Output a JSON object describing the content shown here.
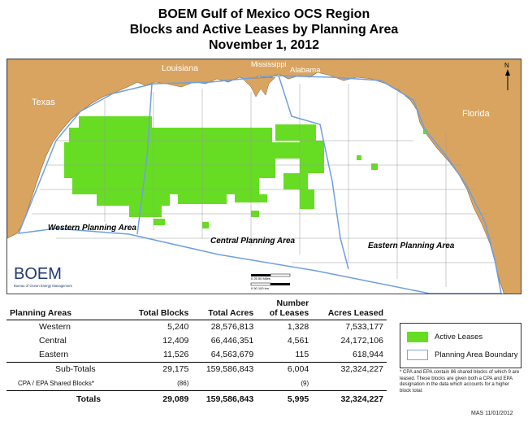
{
  "title": {
    "line1": "BOEM Gulf of Mexico OCS Region",
    "line2": "Blocks and Active Leases by Planning Area",
    "line3": "November 1, 2012"
  },
  "map": {
    "states": {
      "texas": "Texas",
      "louisiana": "Louisiana",
      "mississippi": "Mississippi",
      "alabama": "Alabama",
      "florida": "Florida"
    },
    "areas": {
      "western": "Western Planning Area",
      "central": "Central Planning Area",
      "eastern": "Eastern Planning Area"
    },
    "north_label": "N",
    "logo_text": "BOEM",
    "logo_subtext": "Bureau of Ocean Energy Management",
    "scale_label_miles": "0   25   50 Miles",
    "scale_label_km": "0   50   100 km",
    "colors": {
      "land": "#d9a460",
      "water": "#ffffff",
      "leases": "#66dd22",
      "boundary": "#6f9fe0",
      "grid": "#9a9a9a"
    }
  },
  "table": {
    "headers": {
      "area": "Planning Areas",
      "blocks": "Total Blocks",
      "acres": "Total Acres",
      "leases_line1": "Number",
      "leases_line2": "of Leases",
      "leased": "Acres Leased"
    },
    "rows": [
      {
        "name": "Western",
        "blocks": "5,240",
        "acres": "28,576,813",
        "leases": "1,328",
        "leased": "7,533,177"
      },
      {
        "name": "Central",
        "blocks": "12,409",
        "acres": "66,446,351",
        "leases": "4,561",
        "leased": "24,172,106"
      },
      {
        "name": "Eastern",
        "blocks": "11,526",
        "acres": "64,563,679",
        "leases": "115",
        "leased": "618,944"
      }
    ],
    "subtotal": {
      "name": "Sub-Totals",
      "blocks": "29,175",
      "acres": "159,586,843",
      "leases": "6,004",
      "leased": "32,324,227"
    },
    "shared": {
      "name": "CPA / EPA Shared Blocks*",
      "blocks": "(86)",
      "acres": "",
      "leases": "(9)",
      "leased": ""
    },
    "totals": {
      "name": "Totals",
      "blocks": "29,089",
      "acres": "159,586,843",
      "leases": "5,995",
      "leased": "32,324,227"
    }
  },
  "legend": {
    "active_leases": "Active Leases",
    "boundary": "Planning Area Boundary"
  },
  "footnote": "* CPA and EPA contain 86 shared blocks of which 9 are leased. These blocks are given both a CPA and EPA designation in the data which accounts for a higher block total.",
  "stamp": "MAS  11/01/2012"
}
